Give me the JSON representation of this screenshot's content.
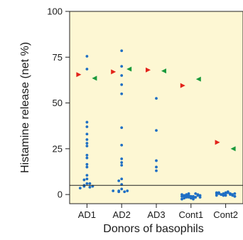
{
  "chart_data": {
    "type": "scatter",
    "xlabel": "Donors of basophils",
    "ylabel": "Histamine release (net %)",
    "ylim": [
      -5,
      100
    ],
    "yticks": [
      0,
      25,
      50,
      75,
      100
    ],
    "categories": [
      "AD1",
      "AD2",
      "AD3",
      "Cont1",
      "Cont2"
    ],
    "plot_background": "#fdf7d3",
    "baseline": 5,
    "dot_color": "#1f6fc4",
    "marker_colors": {
      "red": "#e2231a",
      "green": "#1a9a3c"
    },
    "groups": [
      {
        "category": "AD1",
        "points": [
          75.5,
          68.5,
          39.5,
          37,
          33,
          30,
          28,
          26.5,
          21.5,
          20,
          16.5,
          15,
          10.5,
          8.5,
          8,
          6,
          5,
          4.5,
          4,
          3.5,
          6,
          4.5
        ],
        "red": 65.5,
        "green": 63.5
      },
      {
        "category": "AD2",
        "points": [
          78.5,
          70,
          65,
          60,
          55,
          36.5,
          27,
          19.5,
          17.5,
          16,
          8.5,
          7.5,
          5.5,
          3,
          2,
          1.5,
          1.5,
          2,
          2
        ],
        "red": 67,
        "green": 68.5
      },
      {
        "category": "AD3",
        "points": [
          52.5,
          35,
          18.5,
          15,
          13
        ],
        "red": 68,
        "green": 67.5
      },
      {
        "category": "Cont1",
        "points": [
          0,
          -0.5,
          -1,
          -1.5,
          -2,
          -1,
          0.5,
          -0.5,
          -1.5,
          -2.5,
          -1,
          0,
          -0.5,
          -1,
          -2,
          -1.5,
          0,
          -0.5,
          -1,
          -2,
          -1.5,
          0.5,
          -1,
          -2.5,
          -1.5,
          -0.5
        ],
        "red": 59.5,
        "green": 63
      },
      {
        "category": "Cont2",
        "points": [
          1,
          0.5,
          0,
          -0.5,
          1,
          1.5,
          0.5,
          0,
          -1,
          -0.5,
          1,
          0,
          0.5,
          -0.5,
          1.5,
          0.5,
          0,
          -1,
          0.5,
          1,
          0,
          -0.5,
          0.5,
          1,
          0,
          -0.5,
          0.5
        ],
        "red": 28.5,
        "green": 25
      }
    ]
  }
}
